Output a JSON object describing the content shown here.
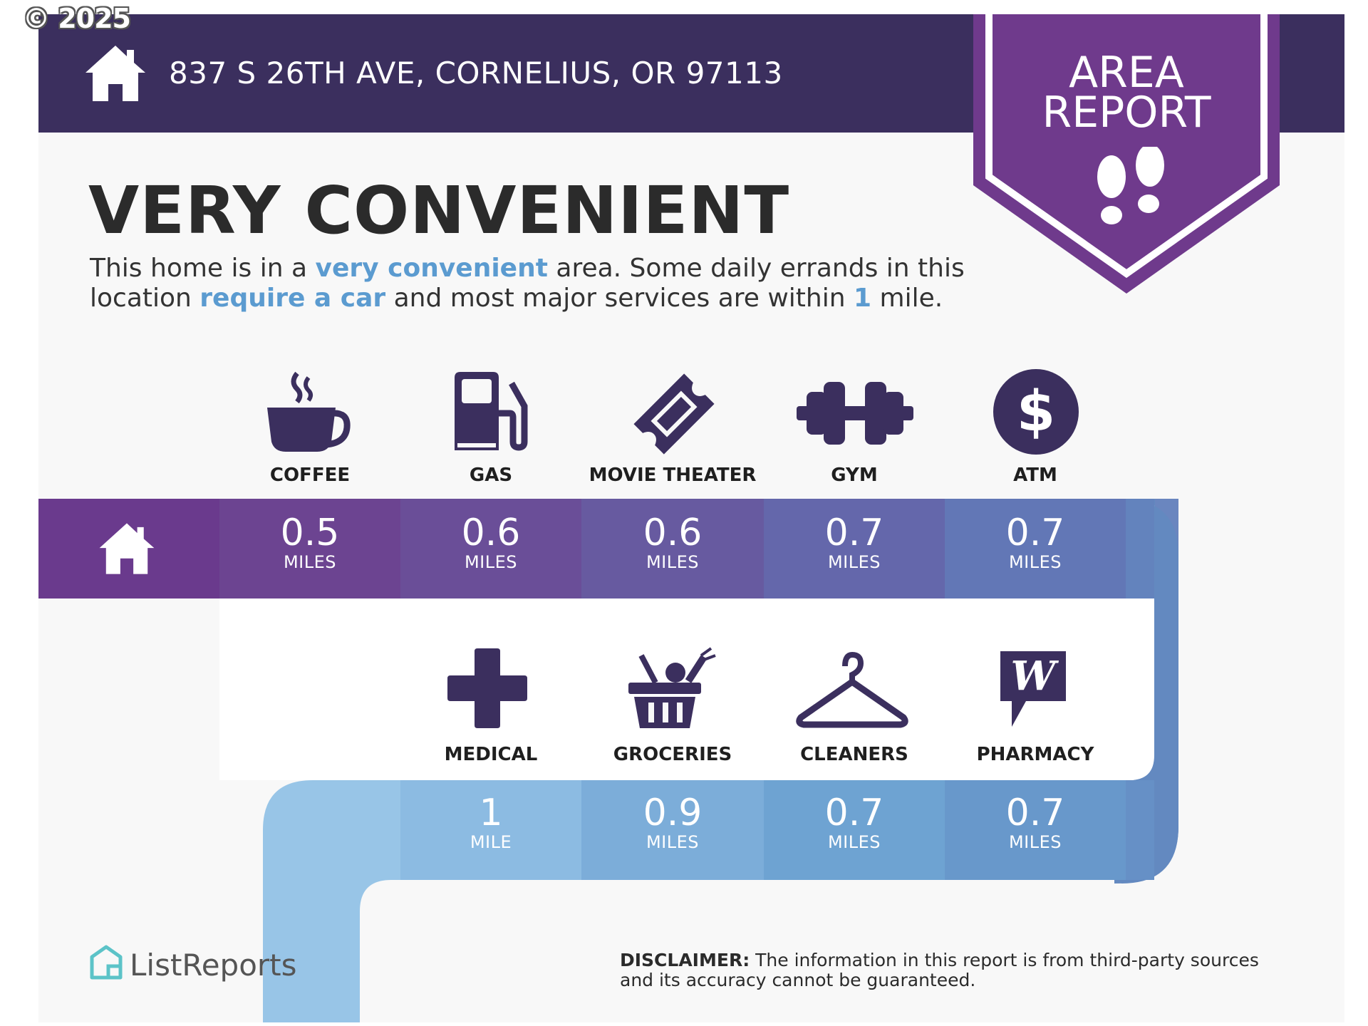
{
  "watermark": "© 2025",
  "header": {
    "address": "837 S 26TH AVE, CORNELIUS, OR 97113"
  },
  "badge": {
    "line1": "AREA",
    "line2": "REPORT"
  },
  "summary": {
    "title": "VERY CONVENIENT",
    "sentence_1a": "This home is in a ",
    "sentence_1b": "very convenient",
    "sentence_1c": " area. Some daily errands in this location ",
    "sentence_1d": "require a car",
    "sentence_1e": " and most major services are within ",
    "sentence_1f": "1",
    "sentence_1g": " mile."
  },
  "row1": [
    {
      "label": "COFFEE",
      "value": "0.5",
      "unit": "MILES",
      "icon": "coffee-cup-icon"
    },
    {
      "label": "GAS",
      "value": "0.6",
      "unit": "MILES",
      "icon": "gas-pump-icon"
    },
    {
      "label": "MOVIE THEATER",
      "value": "0.6",
      "unit": "MILES",
      "icon": "ticket-icon"
    },
    {
      "label": "GYM",
      "value": "0.7",
      "unit": "MILES",
      "icon": "dumbbell-icon"
    },
    {
      "label": "ATM",
      "value": "0.7",
      "unit": "MILES",
      "icon": "dollar-icon"
    }
  ],
  "row2": [
    {
      "label": "MEDICAL",
      "value": "1",
      "unit": "MILE",
      "icon": "medical-cross-icon"
    },
    {
      "label": "GROCERIES",
      "value": "0.9",
      "unit": "MILES",
      "icon": "basket-icon"
    },
    {
      "label": "CLEANERS",
      "value": "0.7",
      "unit": "MILES",
      "icon": "hanger-icon"
    },
    {
      "label": "PHARMACY",
      "value": "0.7",
      "unit": "MILES",
      "icon": "walgreens-icon"
    }
  ],
  "footer": {
    "brand": "ListReports",
    "disclaimer_label": "DISCLAIMER:",
    "disclaimer_text": " The information in this report is from third-party sources and its accuracy cannot be guaranteed."
  },
  "colors": {
    "header": "#3b2f5e",
    "badge": "#6f3a8c",
    "icon": "#3b2f5e",
    "accent_text": "#5b9bd0"
  }
}
